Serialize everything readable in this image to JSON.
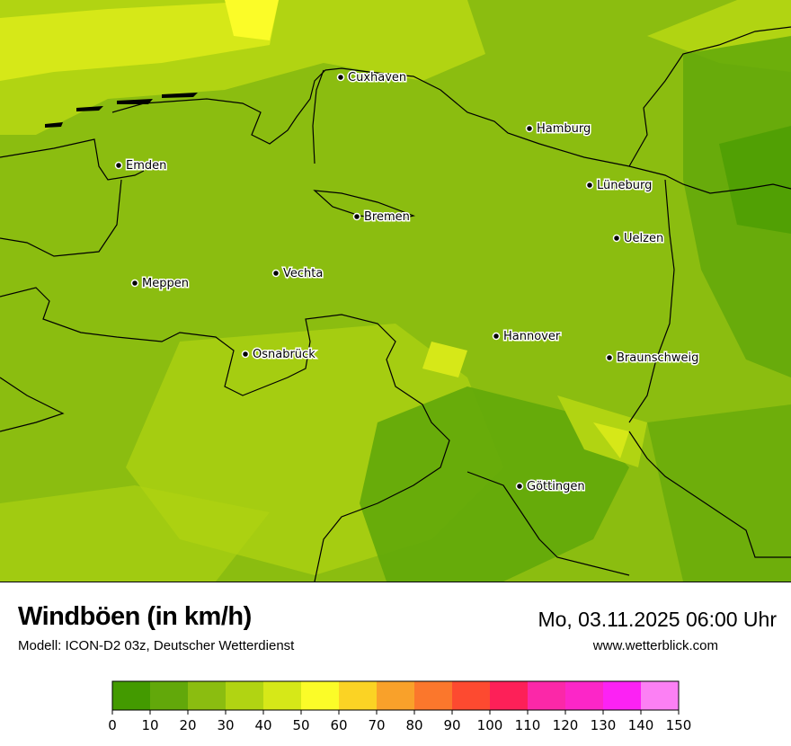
{
  "title": "Windböen (in km/h)",
  "subtitle": "Modell: ICON-D2 03z, Deutscher Wetterdienst",
  "datetime": "Mo, 03.11.2025 06:00 Uhr",
  "website": "www.wetterblick.com",
  "map": {
    "cities": [
      {
        "name": "Cuxhaven"
      },
      {
        "name": "Hamburg"
      },
      {
        "name": "Emden"
      },
      {
        "name": "Lüneburg"
      },
      {
        "name": "Bremen"
      },
      {
        "name": "Uelzen"
      },
      {
        "name": "Vechta"
      },
      {
        "name": "Meppen"
      },
      {
        "name": "Hannover"
      },
      {
        "name": "Osnabrück"
      },
      {
        "name": "Braunschweig"
      },
      {
        "name": "Göttingen"
      }
    ]
  },
  "legend": {
    "unit": "km/h",
    "ticks": [
      "0",
      "10",
      "20",
      "30",
      "40",
      "50",
      "60",
      "70",
      "80",
      "90",
      "100",
      "110",
      "120",
      "130",
      "140",
      "150"
    ],
    "colors": [
      "#439a00",
      "#62a80a",
      "#8bbd10",
      "#b1d412",
      "#d6e818",
      "#fbfc28",
      "#fbd324",
      "#f9a12a",
      "#fb772c",
      "#fd4a30",
      "#fd2058",
      "#fb28a8",
      "#fc26c8",
      "#fc22f4",
      "#fc80f4"
    ]
  }
}
